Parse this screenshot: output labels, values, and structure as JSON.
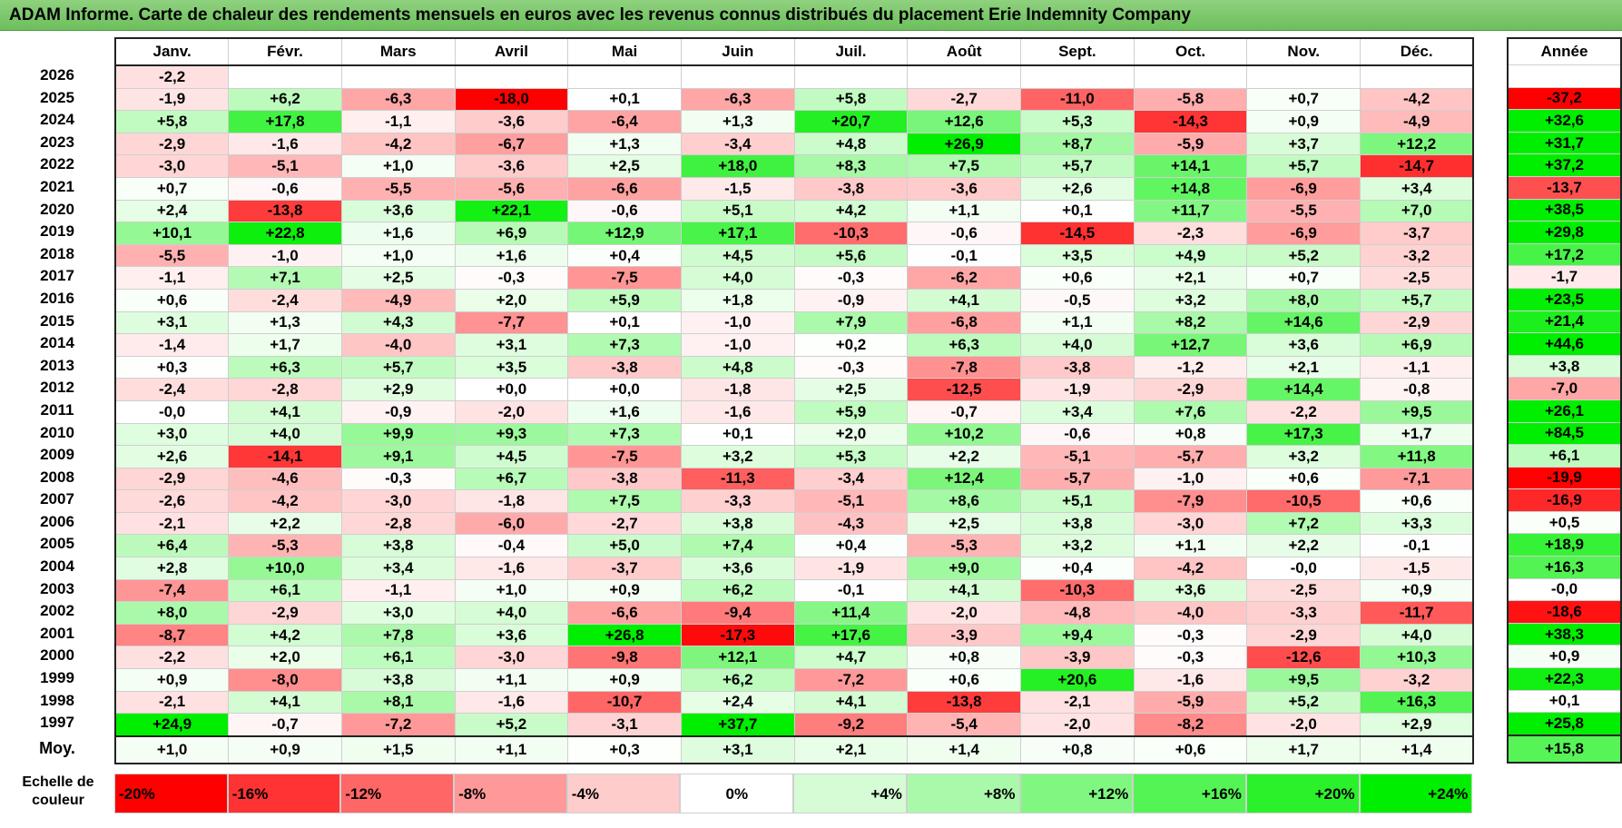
{
  "title": "ADAM Informe. Carte de chaleur des rendements mensuels en euros avec les revenus connus distribués du placement Erie Indemnity Company",
  "chart_data": {
    "type": "heatmap",
    "months": [
      "Janv.",
      "Févr.",
      "Mars",
      "Avril",
      "Mai",
      "Juin",
      "Juil.",
      "Août",
      "Sept.",
      "Oct.",
      "Nov.",
      "Déc."
    ],
    "year_col_label": "Année",
    "rows": [
      {
        "year": "2026",
        "values": [
          "-2,2",
          "",
          "",
          "",
          "",
          "",
          "",
          "",
          "",
          "",
          "",
          ""
        ],
        "annual": ""
      },
      {
        "year": "2025",
        "values": [
          "-1,9",
          "+6,2",
          "-6,3",
          "-18,0",
          "+0,1",
          "-6,3",
          "+5,8",
          "-2,7",
          "-11,0",
          "-5,8",
          "+0,7",
          "-4,2"
        ],
        "annual": "-37,2"
      },
      {
        "year": "2024",
        "values": [
          "+5,8",
          "+17,8",
          "-1,1",
          "-3,6",
          "-6,4",
          "+1,3",
          "+20,7",
          "+12,6",
          "+5,3",
          "-14,3",
          "+0,9",
          "-4,9"
        ],
        "annual": "+32,6"
      },
      {
        "year": "2023",
        "values": [
          "-2,9",
          "-1,6",
          "-4,2",
          "-6,7",
          "+1,3",
          "-3,4",
          "+4,8",
          "+26,9",
          "+8,7",
          "-5,9",
          "+3,7",
          "+12,2"
        ],
        "annual": "+31,7"
      },
      {
        "year": "2022",
        "values": [
          "-3,0",
          "-5,1",
          "+1,0",
          "-3,6",
          "+2,5",
          "+18,0",
          "+8,3",
          "+7,5",
          "+5,7",
          "+14,1",
          "+5,7",
          "-14,7"
        ],
        "annual": "+37,2"
      },
      {
        "year": "2021",
        "values": [
          "+0,7",
          "-0,6",
          "-5,5",
          "-5,6",
          "-6,6",
          "-1,5",
          "-3,8",
          "-3,6",
          "+2,6",
          "+14,8",
          "-6,9",
          "+3,4"
        ],
        "annual": "-13,7"
      },
      {
        "year": "2020",
        "values": [
          "+2,4",
          "-13,8",
          "+3,6",
          "+22,1",
          "-0,6",
          "+5,1",
          "+4,2",
          "+1,1",
          "+0,1",
          "+11,7",
          "-5,5",
          "+7,0"
        ],
        "annual": "+38,5"
      },
      {
        "year": "2019",
        "values": [
          "+10,1",
          "+22,8",
          "+1,6",
          "+6,9",
          "+12,9",
          "+17,1",
          "-10,3",
          "-0,6",
          "-14,5",
          "-2,3",
          "-6,9",
          "-3,7"
        ],
        "annual": "+29,8"
      },
      {
        "year": "2018",
        "values": [
          "-5,5",
          "-1,0",
          "+1,0",
          "+1,6",
          "+0,4",
          "+4,5",
          "+5,6",
          "-0,1",
          "+3,5",
          "+4,9",
          "+5,2",
          "-3,2"
        ],
        "annual": "+17,2"
      },
      {
        "year": "2017",
        "values": [
          "-1,1",
          "+7,1",
          "+2,5",
          "-0,3",
          "-7,5",
          "+4,0",
          "-0,3",
          "-6,2",
          "+0,6",
          "+2,1",
          "+0,7",
          "-2,5"
        ],
        "annual": "-1,7"
      },
      {
        "year": "2016",
        "values": [
          "+0,6",
          "-2,4",
          "-4,9",
          "+2,0",
          "+5,9",
          "+1,8",
          "-0,9",
          "+4,1",
          "-0,5",
          "+3,2",
          "+8,0",
          "+5,7"
        ],
        "annual": "+23,5"
      },
      {
        "year": "2015",
        "values": [
          "+3,1",
          "+1,3",
          "+4,3",
          "-7,7",
          "+0,1",
          "-1,0",
          "+7,9",
          "-6,8",
          "+1,1",
          "+8,2",
          "+14,6",
          "-2,9"
        ],
        "annual": "+21,4"
      },
      {
        "year": "2014",
        "values": [
          "-1,4",
          "+1,7",
          "-4,0",
          "+3,1",
          "+7,3",
          "-1,0",
          "+0,2",
          "+6,3",
          "+4,0",
          "+12,7",
          "+3,6",
          "+6,9"
        ],
        "annual": "+44,6"
      },
      {
        "year": "2013",
        "values": [
          "+0,3",
          "+6,3",
          "+5,7",
          "+3,5",
          "-3,8",
          "+4,8",
          "-0,3",
          "-7,8",
          "-3,8",
          "-1,2",
          "+2,1",
          "-1,1"
        ],
        "annual": "+3,8"
      },
      {
        "year": "2012",
        "values": [
          "-2,4",
          "-2,8",
          "+2,9",
          "+0,0",
          "+0,0",
          "-1,8",
          "+2,5",
          "-12,5",
          "-1,9",
          "-2,9",
          "+14,4",
          "-0,8"
        ],
        "annual": "-7,0"
      },
      {
        "year": "2011",
        "values": [
          "-0,0",
          "+4,1",
          "-0,9",
          "-2,0",
          "+1,6",
          "-1,6",
          "+5,9",
          "-0,7",
          "+3,4",
          "+7,6",
          "-2,2",
          "+9,5"
        ],
        "annual": "+26,1"
      },
      {
        "year": "2010",
        "values": [
          "+3,0",
          "+4,0",
          "+9,9",
          "+9,3",
          "+7,3",
          "+0,1",
          "+2,0",
          "+10,2",
          "-0,6",
          "+0,8",
          "+17,3",
          "+1,7"
        ],
        "annual": "+84,5"
      },
      {
        "year": "2009",
        "values": [
          "+2,6",
          "-14,1",
          "+9,1",
          "+4,5",
          "-7,5",
          "+3,2",
          "+5,3",
          "+2,2",
          "-5,1",
          "-5,7",
          "+3,2",
          "+11,8"
        ],
        "annual": "+6,1"
      },
      {
        "year": "2008",
        "values": [
          "-2,9",
          "-4,6",
          "-0,3",
          "+6,7",
          "-3,8",
          "-11,3",
          "-3,4",
          "+12,4",
          "-5,7",
          "-1,0",
          "+0,6",
          "-7,1"
        ],
        "annual": "-19,9"
      },
      {
        "year": "2007",
        "values": [
          "-2,6",
          "-4,2",
          "-3,0",
          "-1,8",
          "+7,5",
          "-3,3",
          "-5,1",
          "+8,6",
          "+5,1",
          "-7,9",
          "-10,5",
          "+0,6"
        ],
        "annual": "-16,9"
      },
      {
        "year": "2006",
        "values": [
          "-2,1",
          "+2,2",
          "-2,8",
          "-6,0",
          "-2,7",
          "+3,8",
          "-4,3",
          "+2,5",
          "+3,8",
          "-3,0",
          "+7,2",
          "+3,3"
        ],
        "annual": "+0,5"
      },
      {
        "year": "2005",
        "values": [
          "+6,4",
          "-5,3",
          "+3,8",
          "-0,4",
          "+5,0",
          "+7,4",
          "+0,4",
          "-5,3",
          "+3,2",
          "+1,1",
          "+2,2",
          "-0,1"
        ],
        "annual": "+18,9"
      },
      {
        "year": "2004",
        "values": [
          "+2,8",
          "+10,0",
          "+3,4",
          "-1,6",
          "-3,7",
          "+3,6",
          "-1,9",
          "+9,0",
          "+0,4",
          "-4,2",
          "-0,0",
          "-1,5"
        ],
        "annual": "+16,3"
      },
      {
        "year": "2003",
        "values": [
          "-7,4",
          "+6,1",
          "-1,1",
          "+1,0",
          "+0,9",
          "+6,2",
          "-0,1",
          "+4,1",
          "-10,3",
          "+3,6",
          "-2,5",
          "+0,9"
        ],
        "annual": "-0,0"
      },
      {
        "year": "2002",
        "values": [
          "+8,0",
          "-2,9",
          "+3,0",
          "+4,0",
          "-6,6",
          "-9,4",
          "+11,4",
          "-2,0",
          "-4,8",
          "-4,0",
          "-3,3",
          "-11,7"
        ],
        "annual": "-18,6"
      },
      {
        "year": "2001",
        "values": [
          "-8,7",
          "+4,2",
          "+7,8",
          "+3,6",
          "+26,8",
          "-17,3",
          "+17,6",
          "-3,9",
          "+9,4",
          "-0,3",
          "-2,9",
          "+4,0"
        ],
        "annual": "+38,3"
      },
      {
        "year": "2000",
        "values": [
          "-2,2",
          "+2,0",
          "+6,1",
          "-3,0",
          "-9,8",
          "+12,1",
          "+4,7",
          "+0,8",
          "-3,9",
          "-0,3",
          "-12,6",
          "+10,3"
        ],
        "annual": "+0,9"
      },
      {
        "year": "1999",
        "values": [
          "+0,9",
          "-8,0",
          "+3,8",
          "+1,1",
          "+0,9",
          "+6,2",
          "-7,2",
          "+0,6",
          "+20,6",
          "-1,6",
          "+9,5",
          "-3,2"
        ],
        "annual": "+22,3"
      },
      {
        "year": "1998",
        "values": [
          "-2,1",
          "+4,1",
          "+8,1",
          "-1,6",
          "-10,7",
          "+2,4",
          "+4,1",
          "-13,8",
          "-2,1",
          "-5,9",
          "+5,2",
          "+16,3"
        ],
        "annual": "+0,1"
      },
      {
        "year": "1997",
        "values": [
          "+24,9",
          "-0,7",
          "-7,2",
          "+5,2",
          "-3,1",
          "+37,7",
          "-9,2",
          "-5,4",
          "-2,0",
          "-8,2",
          "-2,0",
          "+2,9"
        ],
        "annual": "+25,8"
      }
    ],
    "average": {
      "label": "Moy.",
      "values": [
        "+1,0",
        "+0,9",
        "+1,5",
        "+1,1",
        "+0,3",
        "+3,1",
        "+2,1",
        "+1,4",
        "+0,8",
        "+0,6",
        "+1,7",
        "+1,4"
      ],
      "annual": "+15,8"
    },
    "scale": {
      "label": "Echelle de couleur",
      "steps": [
        "-20%",
        "-16%",
        "-12%",
        "-8%",
        "-4%",
        "0%",
        "+4%",
        "+8%",
        "+12%",
        "+16%",
        "+20%",
        "+24%"
      ]
    },
    "color_scale": {
      "neg_max": "#ff0000",
      "zero": "#ffffff",
      "pos_max": "#00ee00"
    }
  }
}
